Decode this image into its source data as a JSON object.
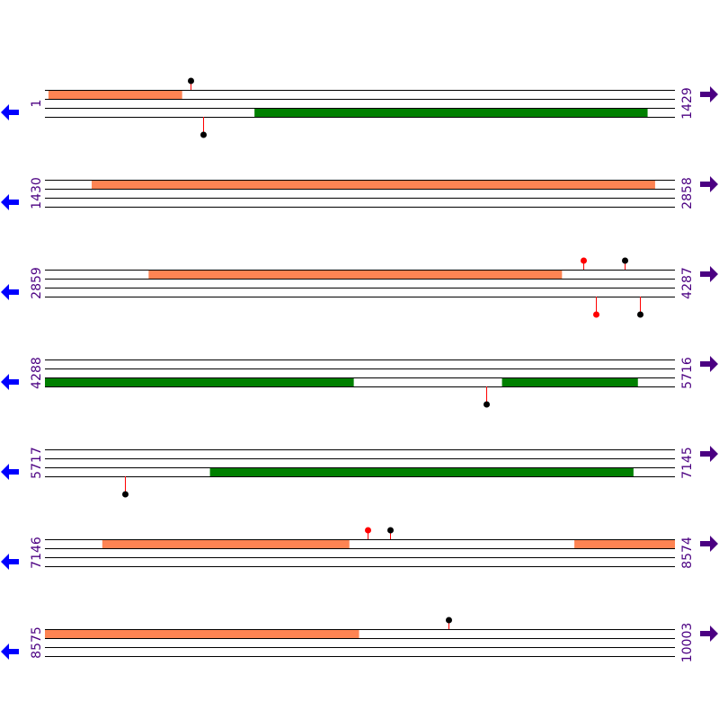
{
  "colors": {
    "track_line": "#000000",
    "forward_feature": "#ff8453",
    "reverse_feature": "#008000",
    "site_black": "#000000",
    "site_red": "#ff0000",
    "stem": "#ff0000",
    "left_arrow": "#0000ff",
    "right_arrow": "#4b0082",
    "label": "#4b0082"
  },
  "icons": {
    "left": "arrow-left-icon",
    "right": "arrow-right-icon"
  },
  "rows": [
    {
      "start": 1,
      "end": 1429,
      "start_label": "1",
      "end_label": "1429",
      "features": [
        {
          "strand": 1,
          "from": 9,
          "to": 312
        },
        {
          "strand": 3,
          "from": 476,
          "to": 1367
        }
      ],
      "sites": [
        {
          "pos": 331,
          "side": "top",
          "color": "black"
        },
        {
          "pos": 359,
          "side": "bottom",
          "color": "black"
        }
      ]
    },
    {
      "start": 1430,
      "end": 2858,
      "start_label": "1430",
      "end_label": "2858",
      "features": [
        {
          "strand": 1,
          "from": 1536,
          "to": 2813
        }
      ],
      "sites": []
    },
    {
      "start": 2859,
      "end": 4287,
      "start_label": "2859",
      "end_label": "4287",
      "features": [
        {
          "strand": 1,
          "from": 3094,
          "to": 4031
        }
      ],
      "sites": [
        {
          "pos": 4079,
          "side": "top",
          "color": "red"
        },
        {
          "pos": 4107,
          "side": "bottom",
          "color": "red"
        },
        {
          "pos": 4173,
          "side": "top",
          "color": "black"
        },
        {
          "pos": 4207,
          "side": "bottom",
          "color": "black"
        }
      ]
    },
    {
      "start": 4288,
      "end": 5716,
      "start_label": "4288",
      "end_label": "5716",
      "features": [
        {
          "strand": 3,
          "from": 4288,
          "to": 4988
        },
        {
          "strand": 3,
          "from": 5324,
          "to": 5632
        }
      ],
      "sites": [
        {
          "pos": 5288,
          "side": "bottom",
          "color": "black"
        }
      ]
    },
    {
      "start": 5717,
      "end": 7145,
      "start_label": "5717",
      "end_label": "7145",
      "features": [
        {
          "strand": 3,
          "from": 6091,
          "to": 7051
        }
      ],
      "sites": [
        {
          "pos": 5899,
          "side": "bottom",
          "color": "black"
        }
      ]
    },
    {
      "start": 7146,
      "end": 8574,
      "start_label": "7146",
      "end_label": "8574",
      "features": [
        {
          "strand": 1,
          "from": 7276,
          "to": 7836
        },
        {
          "strand": 1,
          "from": 8346,
          "to": 8574
        }
      ],
      "sites": [
        {
          "pos": 7878,
          "side": "top",
          "color": "red"
        },
        {
          "pos": 7928,
          "side": "top",
          "color": "black"
        }
      ]
    },
    {
      "start": 8575,
      "end": 10003,
      "start_label": "8575",
      "end_label": "10003",
      "features": [
        {
          "strand": 1,
          "from": 8575,
          "to": 9287
        }
      ],
      "sites": [
        {
          "pos": 9489,
          "side": "top",
          "color": "black"
        }
      ]
    }
  ]
}
